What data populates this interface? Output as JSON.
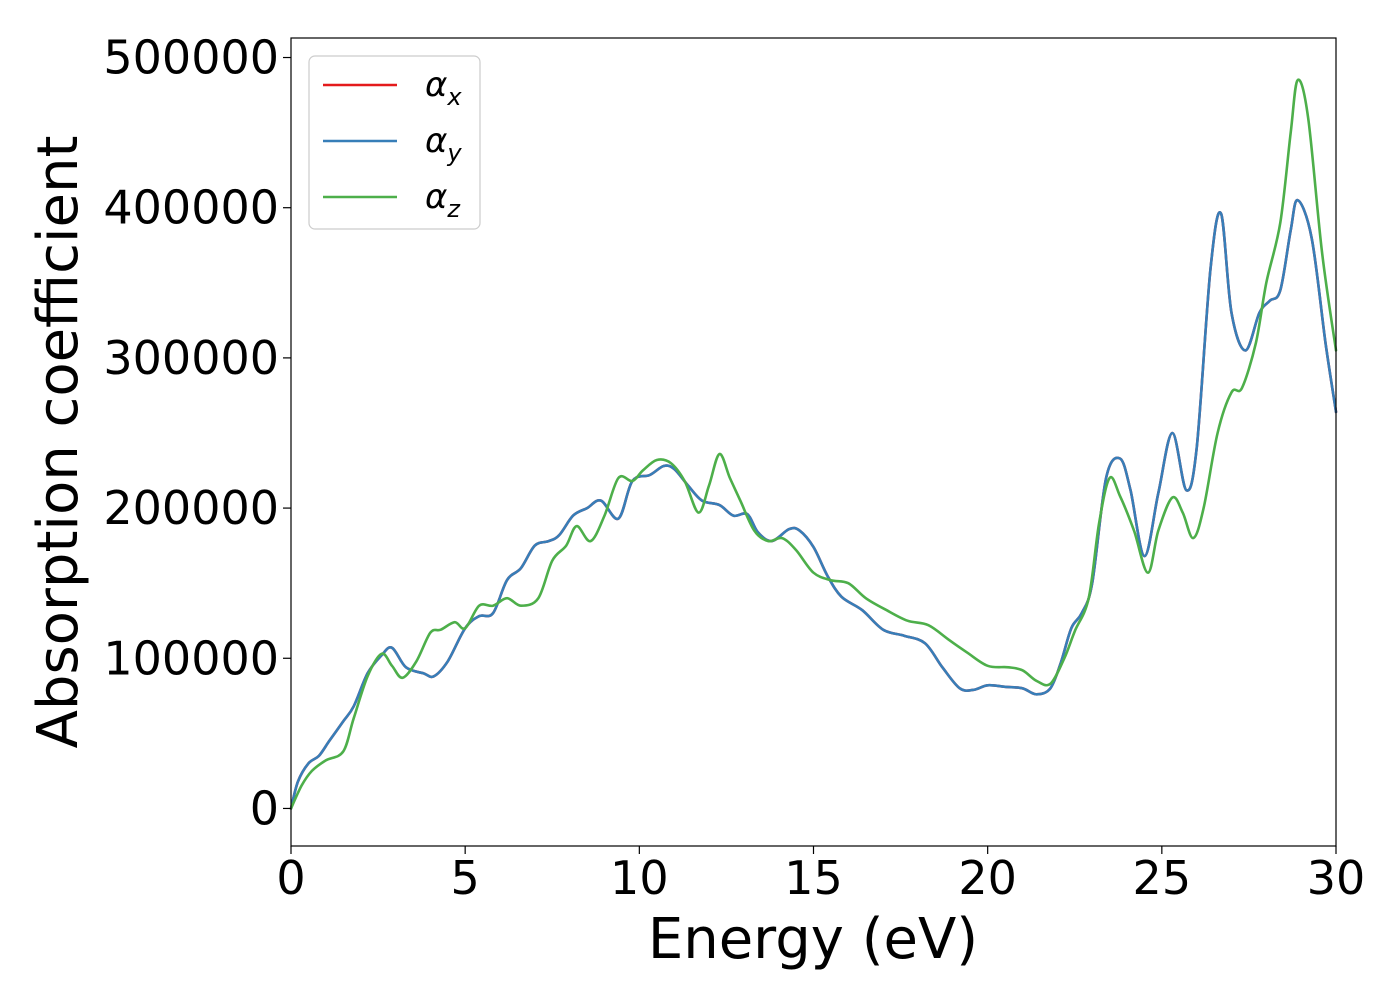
{
  "chart_data": {
    "type": "line",
    "title": "",
    "xlabel": "Energy (eV)",
    "ylabel": "Absorption coefficient",
    "xlim": [
      0,
      30
    ],
    "ylim": [
      -25000,
      513000
    ],
    "xticks": [
      0,
      5,
      10,
      15,
      20,
      25,
      30
    ],
    "xtick_labels": [
      "0",
      "5",
      "10",
      "15",
      "20",
      "25",
      "30"
    ],
    "yticks": [
      0,
      100000,
      200000,
      300000,
      400000,
      500000
    ],
    "ytick_labels": [
      "0",
      "100000",
      "200000",
      "300000",
      "400000",
      "500000"
    ],
    "grid": false,
    "legend_position": "top-left",
    "series": [
      {
        "name": "αx",
        "symbol": "α",
        "subscript": "x",
        "color": "#e41a1c",
        "x": [
          0,
          0.2,
          0.5,
          0.8,
          1.1,
          1.5,
          1.8,
          2.2,
          2.6,
          2.9,
          3.3,
          3.8,
          4.1,
          4.5,
          5.0,
          5.4,
          5.8,
          6.2,
          6.6,
          7.0,
          7.4,
          7.7,
          8.1,
          8.5,
          8.9,
          9.4,
          9.8,
          10.3,
          10.7,
          11.0,
          11.4,
          11.8,
          12.3,
          12.7,
          13.1,
          13.4,
          13.8,
          14.3,
          14.6,
          15.0,
          15.4,
          15.8,
          16.4,
          17.0,
          17.6,
          18.2,
          18.7,
          19.2,
          19.6,
          20.0,
          20.5,
          21.0,
          21.4,
          21.8,
          22.1,
          22.4,
          22.7,
          23.0,
          23.4,
          23.8,
          24.1,
          24.5,
          24.9,
          25.3,
          25.7,
          26.0,
          26.4,
          26.7,
          27.0,
          27.4,
          27.8,
          28.1,
          28.4,
          28.7,
          28.9,
          29.3,
          29.7,
          30.0
        ],
        "y": [
          0,
          18000,
          30000,
          35000,
          45000,
          58000,
          68000,
          90000,
          102000,
          107000,
          94000,
          90000,
          88000,
          98000,
          120000,
          128000,
          130000,
          152000,
          160000,
          175000,
          178000,
          182000,
          195000,
          200000,
          205000,
          193000,
          218000,
          222000,
          228000,
          226000,
          215000,
          205000,
          202000,
          195000,
          196000,
          184000,
          178000,
          186000,
          185000,
          174000,
          155000,
          141000,
          132000,
          119000,
          115000,
          110000,
          94000,
          80000,
          79000,
          82000,
          81000,
          80000,
          76000,
          80000,
          97000,
          120000,
          130000,
          150000,
          220000,
          233000,
          212000,
          168000,
          210000,
          250000,
          212000,
          240000,
          360000,
          396000,
          330000,
          305000,
          330000,
          338000,
          345000,
          385000,
          405000,
          380000,
          310000,
          264000
        ]
      },
      {
        "name": "αy",
        "symbol": "α",
        "subscript": "y",
        "color": "#377eb8",
        "x": [
          0,
          0.2,
          0.5,
          0.8,
          1.1,
          1.5,
          1.8,
          2.2,
          2.6,
          2.9,
          3.3,
          3.8,
          4.1,
          4.5,
          5.0,
          5.4,
          5.8,
          6.2,
          6.6,
          7.0,
          7.4,
          7.7,
          8.1,
          8.5,
          8.9,
          9.4,
          9.8,
          10.3,
          10.7,
          11.0,
          11.4,
          11.8,
          12.3,
          12.7,
          13.1,
          13.4,
          13.8,
          14.3,
          14.6,
          15.0,
          15.4,
          15.8,
          16.4,
          17.0,
          17.6,
          18.2,
          18.7,
          19.2,
          19.6,
          20.0,
          20.5,
          21.0,
          21.4,
          21.8,
          22.1,
          22.4,
          22.7,
          23.0,
          23.4,
          23.8,
          24.1,
          24.5,
          24.9,
          25.3,
          25.7,
          26.0,
          26.4,
          26.7,
          27.0,
          27.4,
          27.8,
          28.1,
          28.4,
          28.7,
          28.9,
          29.3,
          29.7,
          30.0
        ],
        "y": [
          0,
          18000,
          30000,
          35000,
          45000,
          58000,
          68000,
          90000,
          102000,
          107000,
          94000,
          90000,
          88000,
          98000,
          120000,
          128000,
          130000,
          152000,
          160000,
          175000,
          178000,
          182000,
          195000,
          200000,
          205000,
          193000,
          218000,
          222000,
          228000,
          226000,
          215000,
          205000,
          202000,
          195000,
          196000,
          184000,
          178000,
          186000,
          185000,
          174000,
          155000,
          141000,
          132000,
          119000,
          115000,
          110000,
          94000,
          80000,
          79000,
          82000,
          81000,
          80000,
          76000,
          80000,
          97000,
          120000,
          130000,
          150000,
          220000,
          233000,
          212000,
          168000,
          210000,
          250000,
          212000,
          240000,
          360000,
          396000,
          330000,
          305000,
          330000,
          338000,
          345000,
          385000,
          405000,
          380000,
          310000,
          264000
        ]
      },
      {
        "name": "αz",
        "symbol": "α",
        "subscript": "z",
        "color": "#4daf4a",
        "x": [
          0,
          0.3,
          0.6,
          1.0,
          1.5,
          1.8,
          2.2,
          2.6,
          2.9,
          3.2,
          3.6,
          4.0,
          4.3,
          4.7,
          5.0,
          5.4,
          5.8,
          6.2,
          6.6,
          7.1,
          7.5,
          7.9,
          8.2,
          8.6,
          9.0,
          9.4,
          9.8,
          10.1,
          10.5,
          10.9,
          11.3,
          11.7,
          12.0,
          12.3,
          12.6,
          12.9,
          13.3,
          13.7,
          14.1,
          14.5,
          15.0,
          15.5,
          16.0,
          16.5,
          17.1,
          17.7,
          18.3,
          18.9,
          19.4,
          20.0,
          20.6,
          21.0,
          21.4,
          21.8,
          22.2,
          22.5,
          22.9,
          23.2,
          23.5,
          23.8,
          24.2,
          24.6,
          24.9,
          25.3,
          25.6,
          25.9,
          26.2,
          26.6,
          27.0,
          27.3,
          27.7,
          28.0,
          28.4,
          28.7,
          28.9,
          29.2,
          29.6,
          30.0
        ],
        "y": [
          0,
          15000,
          25000,
          32000,
          38000,
          60000,
          88000,
          103000,
          95000,
          87000,
          98000,
          117000,
          119000,
          124000,
          120000,
          135000,
          135000,
          140000,
          135000,
          140000,
          165000,
          175000,
          188000,
          178000,
          195000,
          220000,
          218000,
          225000,
          232000,
          230000,
          218000,
          197000,
          215000,
          236000,
          220000,
          205000,
          185000,
          178000,
          180000,
          172000,
          157000,
          152000,
          150000,
          140000,
          132000,
          125000,
          122000,
          112000,
          104000,
          95000,
          94000,
          92000,
          85000,
          83000,
          100000,
          118000,
          140000,
          190000,
          220000,
          208000,
          185000,
          157000,
          185000,
          207000,
          197000,
          180000,
          200000,
          250000,
          277000,
          280000,
          310000,
          350000,
          390000,
          450000,
          485000,
          460000,
          370000,
          305000
        ]
      }
    ]
  }
}
